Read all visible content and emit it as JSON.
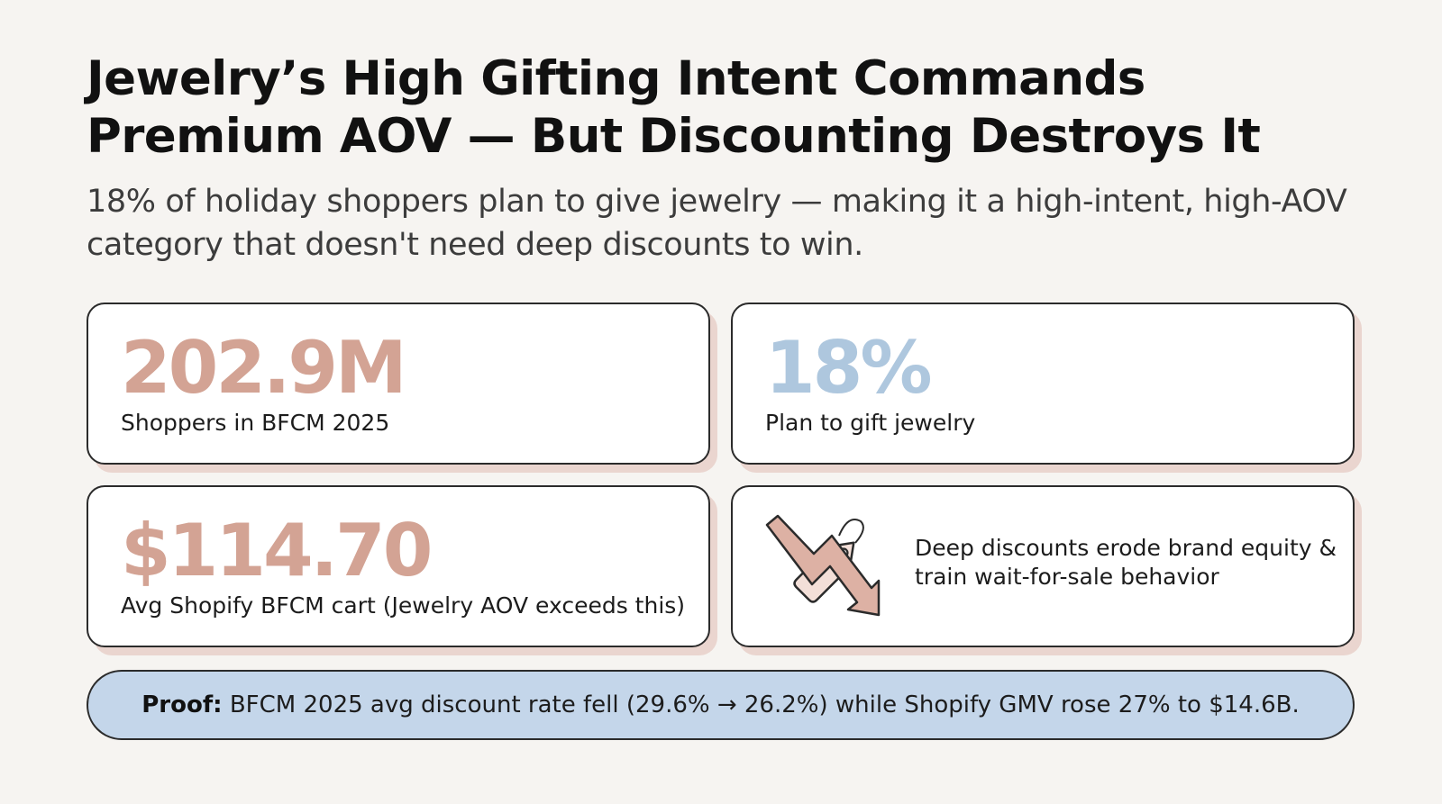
{
  "title": "Jewelry’s High Gifting Intent Commands Premium AOV — But Discounting Destroys It",
  "subtitle": "18% of holiday shoppers plan to give jewelry — making it a high-intent, high-AOV category that doesn't need deep discounts to win.",
  "stats": [
    {
      "value": "202.9M",
      "label": "Shoppers in BFCM 2025",
      "color": "#d3a394"
    },
    {
      "value": "18%",
      "label": "Plan to gift jewelry",
      "color": "#aec7de"
    },
    {
      "value": "$114.70",
      "label": "Avg Shopify BFCM cart (Jewelry AOV exceeds this)",
      "color": "#d3a394"
    }
  ],
  "callout": {
    "icon": "discount-tag-down-arrow-icon",
    "text": "Deep discounts erode brand equity & train wait-for-sale behavior"
  },
  "proof": {
    "label": "Proof",
    "separator": ":",
    "text": " BFCM 2025 avg discount rate fell (29.6% → 26.2%) while Shopify GMV rose 27% to $14.6B."
  },
  "colors": {
    "background": "#f6f4f1",
    "card_shadow": "#ead5cf",
    "rose_accent": "#d3a394",
    "blue_accent": "#aec7de",
    "proof_fill": "#c4d6ea"
  }
}
